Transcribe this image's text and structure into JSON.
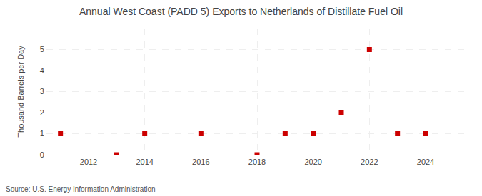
{
  "chart_data": {
    "type": "scatter",
    "title": "Annual West Coast (PADD 5) Exports to Netherlands of Distillate Fuel Oil",
    "y_label": "Thousand Barrels per Day",
    "annotations": [
      "Source: U.S. Energy Information Administration"
    ],
    "x": [
      2011,
      2013,
      2014,
      2016,
      2018,
      2019,
      2020,
      2021,
      2022,
      2023,
      2024
    ],
    "values": [
      1,
      0,
      1,
      1,
      0,
      1,
      1,
      2,
      5,
      1,
      1
    ],
    "color": "#cc0000",
    "marker": "square",
    "xlim": [
      2010.5,
      2025.5
    ],
    "xticks": [
      2012,
      2014,
      2016,
      2018,
      2020,
      2022,
      2024
    ],
    "ylim": [
      0,
      6
    ],
    "yticks": [
      0,
      1,
      2,
      3,
      4,
      5,
      {
        "value": 6,
        "label": null
      }
    ],
    "grid": true
  }
}
